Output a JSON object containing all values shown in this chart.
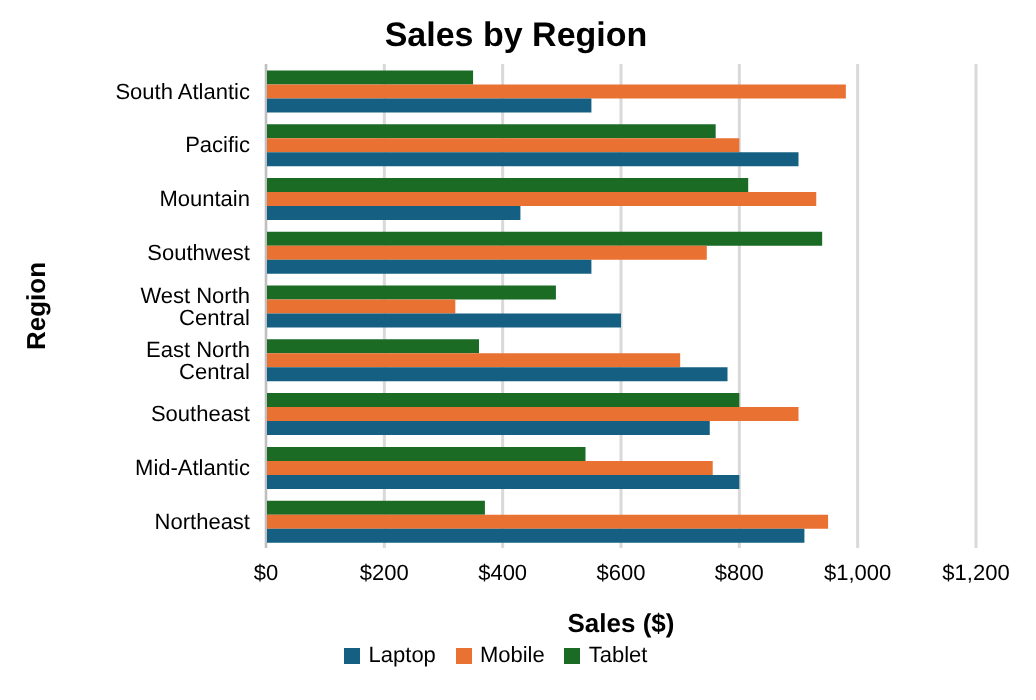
{
  "chart_data": {
    "type": "bar",
    "orientation": "horizontal",
    "title": "Sales by Region",
    "xlabel": "Sales ($)",
    "ylabel": "Region",
    "categories": [
      "South Atlantic",
      "Pacific",
      "Mountain",
      "Southwest",
      "West North Central",
      "East North Central",
      "Southeast",
      "Mid-Atlantic",
      "Northeast"
    ],
    "series": [
      {
        "name": "Tablet",
        "color": "#1b6b24",
        "values": [
          350,
          760,
          815,
          940,
          490,
          360,
          800,
          540,
          370
        ]
      },
      {
        "name": "Mobile",
        "color": "#e97132",
        "values": [
          980,
          800,
          930,
          745,
          320,
          700,
          900,
          755,
          950
        ]
      },
      {
        "name": "Laptop",
        "color": "#156082",
        "values": [
          550,
          900,
          430,
          550,
          600,
          780,
          750,
          800,
          910
        ]
      }
    ],
    "xlim": [
      0,
      1200
    ],
    "xticks": [
      {
        "value": 0,
        "label": "$0"
      },
      {
        "value": 200,
        "label": "$200"
      },
      {
        "value": 400,
        "label": "$400"
      },
      {
        "value": 600,
        "label": "$600"
      },
      {
        "value": 800,
        "label": "$800"
      },
      {
        "value": 1000,
        "label": "$1,000"
      },
      {
        "value": 1200,
        "label": "$1,200"
      }
    ],
    "grid": "x",
    "legend": "bottom"
  }
}
